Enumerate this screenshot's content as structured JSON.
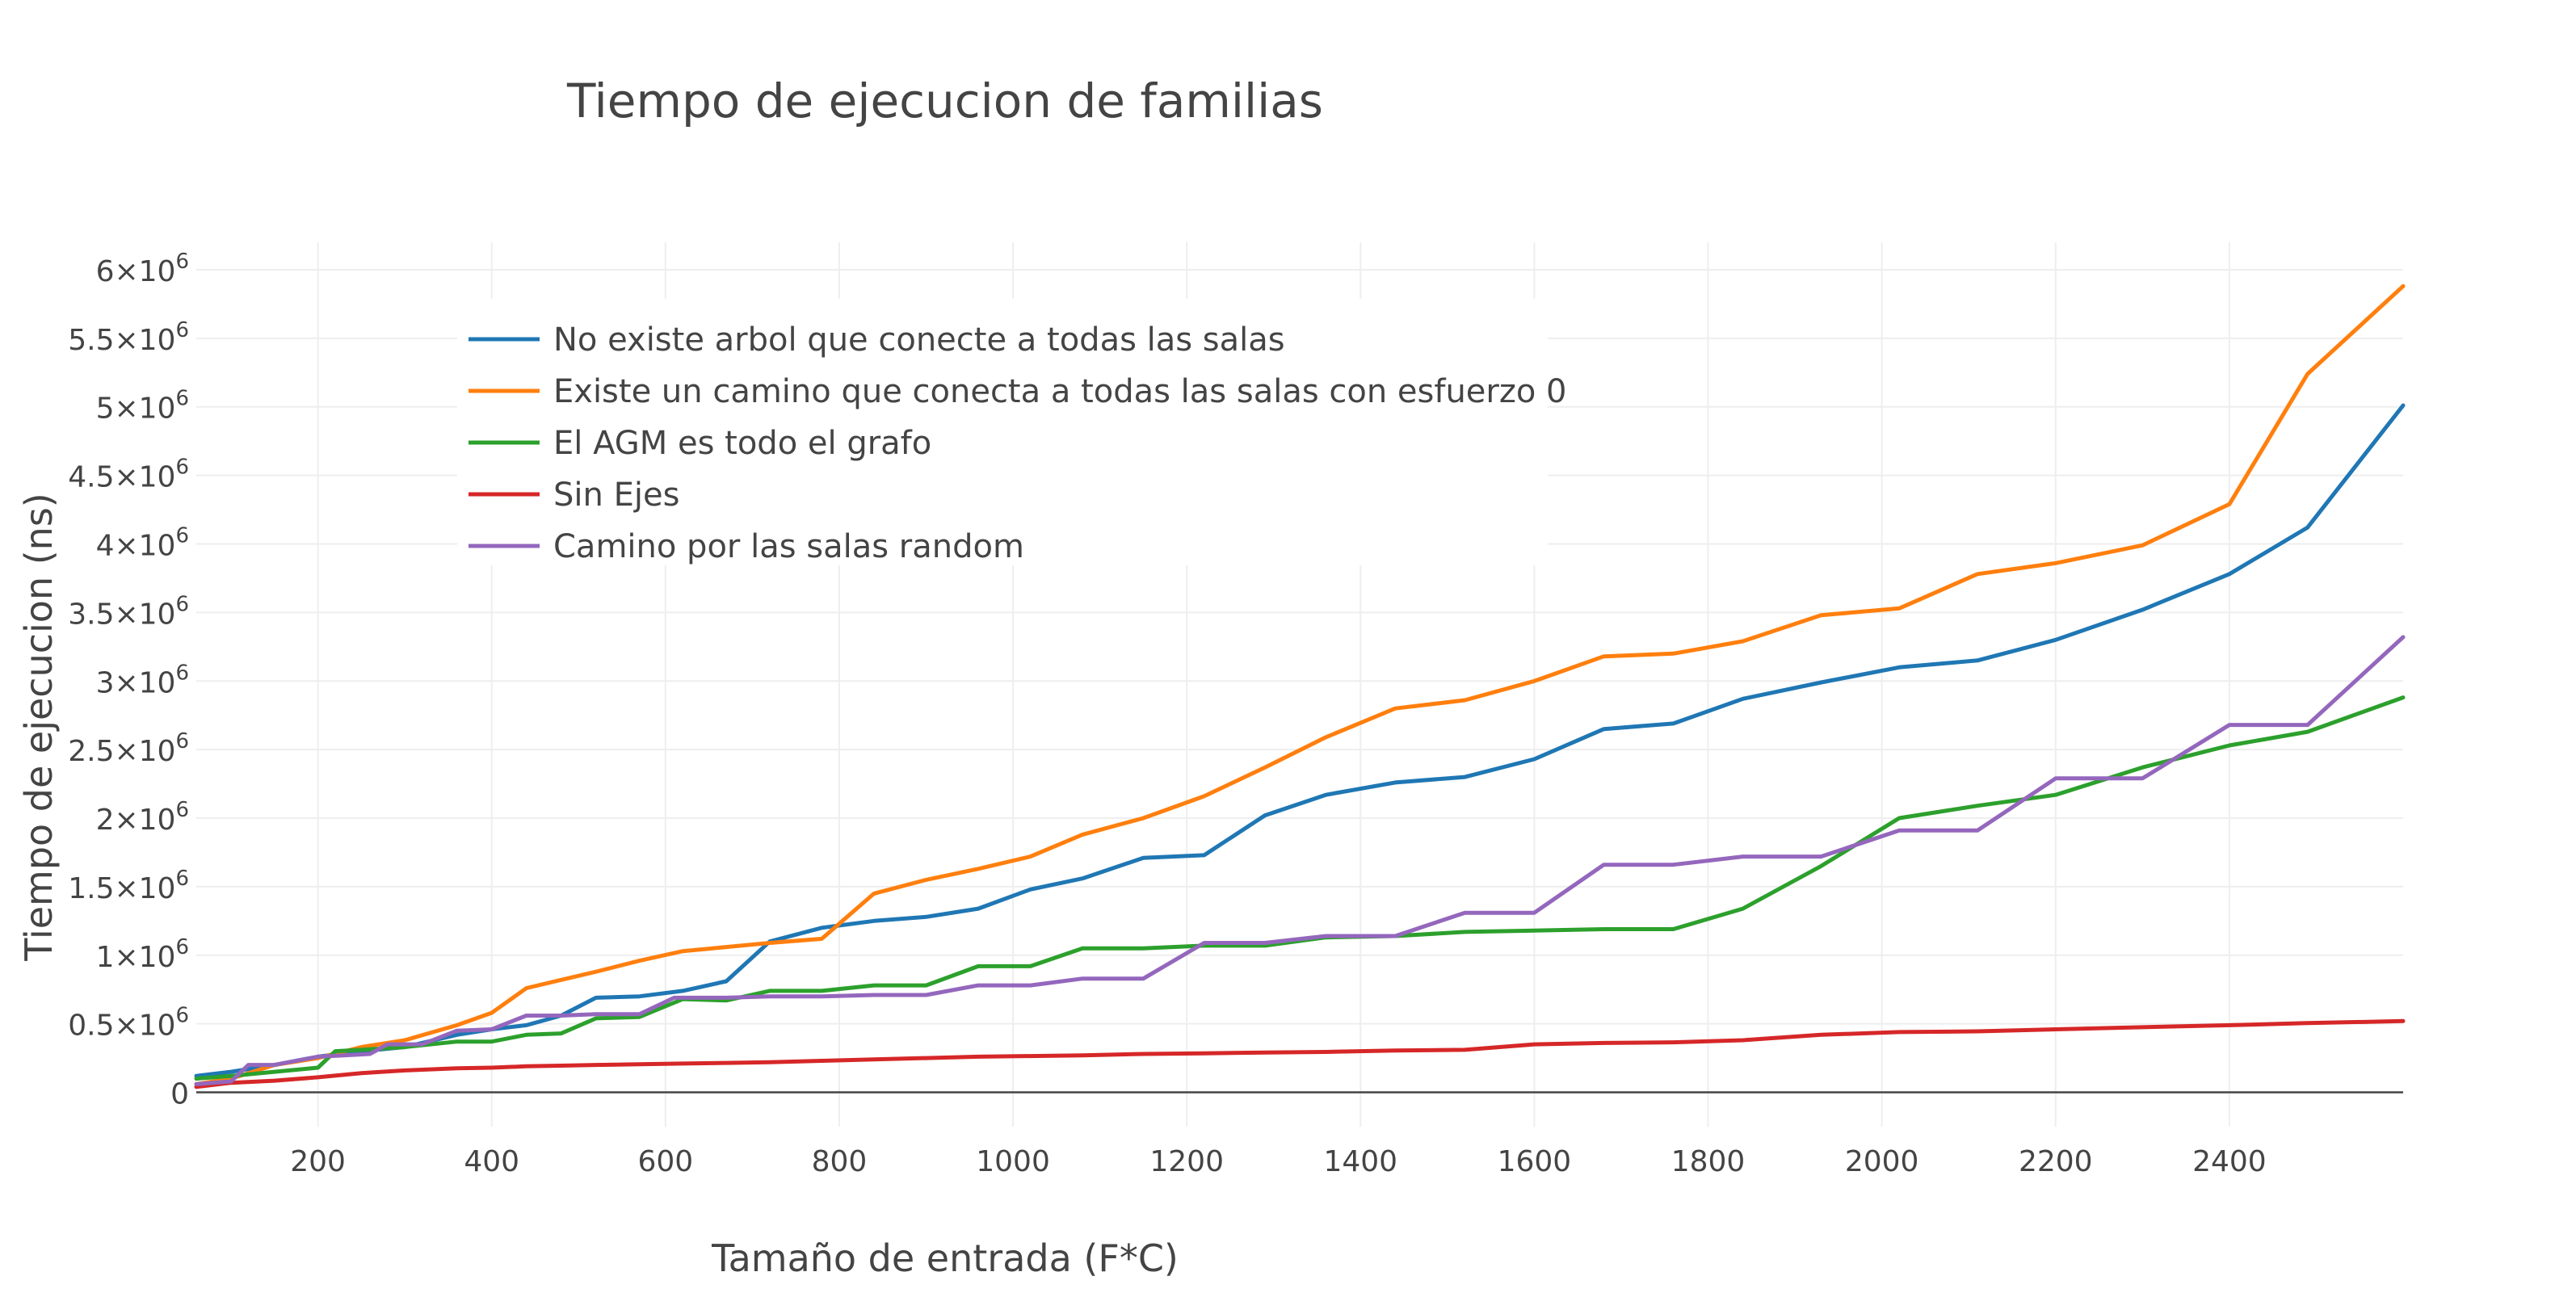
{
  "chart_data": {
    "type": "line",
    "title": "Tiempo de ejecucion de familias",
    "xlabel": "Tamaño de entrada (F*C)",
    "ylabel": "Tiempo de ejecucion (ns)",
    "xlim": [
      60,
      2600
    ],
    "ylim": [
      -250000,
      6200000
    ],
    "x_ticks": [
      {
        "value": 200,
        "label": "200"
      },
      {
        "value": 400,
        "label": "400"
      },
      {
        "value": 600,
        "label": "600"
      },
      {
        "value": 800,
        "label": "800"
      },
      {
        "value": 1000,
        "label": "1000"
      },
      {
        "value": 1200,
        "label": "1200"
      },
      {
        "value": 1400,
        "label": "1400"
      },
      {
        "value": 1600,
        "label": "1600"
      },
      {
        "value": 1800,
        "label": "1800"
      },
      {
        "value": 2000,
        "label": "2000"
      },
      {
        "value": 2200,
        "label": "2200"
      },
      {
        "value": 2400,
        "label": "2400"
      }
    ],
    "y_ticks": [
      {
        "value": 0,
        "mantissa": "0",
        "exponent": ""
      },
      {
        "value": 500000,
        "mantissa": "0.5×10",
        "exponent": "6"
      },
      {
        "value": 1000000,
        "mantissa": "1×10",
        "exponent": "6"
      },
      {
        "value": 1500000,
        "mantissa": "1.5×10",
        "exponent": "6"
      },
      {
        "value": 2000000,
        "mantissa": "2×10",
        "exponent": "6"
      },
      {
        "value": 2500000,
        "mantissa": "2.5×10",
        "exponent": "6"
      },
      {
        "value": 3000000,
        "mantissa": "3×10",
        "exponent": "6"
      },
      {
        "value": 3500000,
        "mantissa": "3.5×10",
        "exponent": "6"
      },
      {
        "value": 4000000,
        "mantissa": "4×10",
        "exponent": "6"
      },
      {
        "value": 4500000,
        "mantissa": "4.5×10",
        "exponent": "6"
      },
      {
        "value": 5000000,
        "mantissa": "5×10",
        "exponent": "6"
      },
      {
        "value": 5500000,
        "mantissa": "5.5×10",
        "exponent": "6"
      },
      {
        "value": 6000000,
        "mantissa": "6×10",
        "exponent": "6"
      }
    ],
    "grid": true,
    "legend_position": "top-left",
    "series": [
      {
        "name": "No existe arbol que conecte a todas las salas",
        "color": "#1f77b4",
        "points": [
          [
            60,
            120000
          ],
          [
            100,
            150000
          ],
          [
            150,
            200000
          ],
          [
            200,
            260000
          ],
          [
            250,
            300000
          ],
          [
            300,
            330000
          ],
          [
            360,
            420000
          ],
          [
            400,
            460000
          ],
          [
            440,
            490000
          ],
          [
            480,
            560000
          ],
          [
            520,
            690000
          ],
          [
            570,
            700000
          ],
          [
            620,
            740000
          ],
          [
            670,
            810000
          ],
          [
            720,
            1100000
          ],
          [
            780,
            1200000
          ],
          [
            840,
            1250000
          ],
          [
            900,
            1280000
          ],
          [
            960,
            1340000
          ],
          [
            1020,
            1480000
          ],
          [
            1080,
            1560000
          ],
          [
            1150,
            1710000
          ],
          [
            1220,
            1730000
          ],
          [
            1290,
            2020000
          ],
          [
            1360,
            2170000
          ],
          [
            1440,
            2260000
          ],
          [
            1520,
            2300000
          ],
          [
            1600,
            2430000
          ],
          [
            1680,
            2650000
          ],
          [
            1760,
            2690000
          ],
          [
            1840,
            2870000
          ],
          [
            1930,
            2990000
          ],
          [
            2020,
            3100000
          ],
          [
            2110,
            3150000
          ],
          [
            2200,
            3300000
          ],
          [
            2300,
            3520000
          ],
          [
            2400,
            3780000
          ],
          [
            2490,
            4120000
          ],
          [
            2600,
            5010000
          ]
        ]
      },
      {
        "name": "Existe un camino que conecta a todas las salas con esfuerzo 0",
        "color": "#ff7f0e",
        "points": [
          [
            60,
            60000
          ],
          [
            100,
            100000
          ],
          [
            150,
            200000
          ],
          [
            200,
            250000
          ],
          [
            250,
            330000
          ],
          [
            300,
            380000
          ],
          [
            360,
            490000
          ],
          [
            400,
            580000
          ],
          [
            440,
            760000
          ],
          [
            480,
            820000
          ],
          [
            520,
            880000
          ],
          [
            570,
            960000
          ],
          [
            620,
            1030000
          ],
          [
            670,
            1060000
          ],
          [
            720,
            1090000
          ],
          [
            780,
            1120000
          ],
          [
            840,
            1450000
          ],
          [
            900,
            1550000
          ],
          [
            960,
            1630000
          ],
          [
            1020,
            1720000
          ],
          [
            1080,
            1880000
          ],
          [
            1150,
            2000000
          ],
          [
            1220,
            2160000
          ],
          [
            1290,
            2370000
          ],
          [
            1360,
            2590000
          ],
          [
            1440,
            2800000
          ],
          [
            1520,
            2860000
          ],
          [
            1600,
            3000000
          ],
          [
            1680,
            3180000
          ],
          [
            1760,
            3200000
          ],
          [
            1840,
            3290000
          ],
          [
            1930,
            3480000
          ],
          [
            2020,
            3530000
          ],
          [
            2110,
            3780000
          ],
          [
            2200,
            3860000
          ],
          [
            2300,
            3990000
          ],
          [
            2400,
            4290000
          ],
          [
            2490,
            5240000
          ],
          [
            2600,
            5880000
          ]
        ]
      },
      {
        "name": "El AGM es todo el grafo",
        "color": "#2ca02c",
        "points": [
          [
            60,
            100000
          ],
          [
            100,
            120000
          ],
          [
            150,
            150000
          ],
          [
            200,
            180000
          ],
          [
            220,
            300000
          ],
          [
            250,
            310000
          ],
          [
            300,
            330000
          ],
          [
            360,
            370000
          ],
          [
            400,
            370000
          ],
          [
            440,
            420000
          ],
          [
            480,
            430000
          ],
          [
            520,
            540000
          ],
          [
            570,
            550000
          ],
          [
            620,
            680000
          ],
          [
            670,
            670000
          ],
          [
            720,
            740000
          ],
          [
            780,
            740000
          ],
          [
            840,
            780000
          ],
          [
            900,
            780000
          ],
          [
            960,
            920000
          ],
          [
            1020,
            920000
          ],
          [
            1080,
            1050000
          ],
          [
            1150,
            1050000
          ],
          [
            1220,
            1070000
          ],
          [
            1290,
            1070000
          ],
          [
            1360,
            1130000
          ],
          [
            1440,
            1140000
          ],
          [
            1520,
            1170000
          ],
          [
            1600,
            1180000
          ],
          [
            1680,
            1190000
          ],
          [
            1760,
            1190000
          ],
          [
            1840,
            1340000
          ],
          [
            1930,
            1650000
          ],
          [
            2020,
            2000000
          ],
          [
            2110,
            2090000
          ],
          [
            2200,
            2170000
          ],
          [
            2300,
            2370000
          ],
          [
            2400,
            2530000
          ],
          [
            2490,
            2630000
          ],
          [
            2600,
            2880000
          ]
        ]
      },
      {
        "name": "Sin Ejes",
        "color": "#d62728",
        "points": [
          [
            60,
            40000
          ],
          [
            100,
            70000
          ],
          [
            150,
            85000
          ],
          [
            200,
            110000
          ],
          [
            250,
            140000
          ],
          [
            300,
            160000
          ],
          [
            360,
            175000
          ],
          [
            400,
            180000
          ],
          [
            440,
            190000
          ],
          [
            480,
            195000
          ],
          [
            520,
            200000
          ],
          [
            570,
            205000
          ],
          [
            620,
            210000
          ],
          [
            670,
            215000
          ],
          [
            720,
            220000
          ],
          [
            780,
            230000
          ],
          [
            840,
            240000
          ],
          [
            900,
            250000
          ],
          [
            960,
            260000
          ],
          [
            1020,
            265000
          ],
          [
            1080,
            270000
          ],
          [
            1150,
            280000
          ],
          [
            1220,
            285000
          ],
          [
            1290,
            290000
          ],
          [
            1360,
            295000
          ],
          [
            1440,
            305000
          ],
          [
            1520,
            310000
          ],
          [
            1600,
            350000
          ],
          [
            1680,
            360000
          ],
          [
            1760,
            365000
          ],
          [
            1840,
            380000
          ],
          [
            1930,
            420000
          ],
          [
            2020,
            440000
          ],
          [
            2110,
            445000
          ],
          [
            2200,
            460000
          ],
          [
            2300,
            475000
          ],
          [
            2400,
            490000
          ],
          [
            2490,
            505000
          ],
          [
            2600,
            520000
          ]
        ]
      },
      {
        "name": "Camino por las salas random",
        "color": "#9467bd",
        "points": [
          [
            60,
            60000
          ],
          [
            100,
            80000
          ],
          [
            120,
            200000
          ],
          [
            150,
            200000
          ],
          [
            200,
            260000
          ],
          [
            230,
            270000
          ],
          [
            260,
            280000
          ],
          [
            280,
            350000
          ],
          [
            320,
            350000
          ],
          [
            360,
            450000
          ],
          [
            400,
            460000
          ],
          [
            440,
            560000
          ],
          [
            480,
            560000
          ],
          [
            520,
            570000
          ],
          [
            570,
            570000
          ],
          [
            610,
            690000
          ],
          [
            670,
            690000
          ],
          [
            720,
            700000
          ],
          [
            780,
            700000
          ],
          [
            840,
            710000
          ],
          [
            900,
            710000
          ],
          [
            960,
            780000
          ],
          [
            1020,
            780000
          ],
          [
            1080,
            830000
          ],
          [
            1150,
            830000
          ],
          [
            1220,
            1090000
          ],
          [
            1290,
            1090000
          ],
          [
            1360,
            1140000
          ],
          [
            1440,
            1140000
          ],
          [
            1520,
            1310000
          ],
          [
            1600,
            1310000
          ],
          [
            1680,
            1660000
          ],
          [
            1760,
            1660000
          ],
          [
            1840,
            1720000
          ],
          [
            1930,
            1720000
          ],
          [
            2020,
            1910000
          ],
          [
            2110,
            1910000
          ],
          [
            2200,
            2290000
          ],
          [
            2300,
            2290000
          ],
          [
            2400,
            2680000
          ],
          [
            2490,
            2680000
          ],
          [
            2600,
            3320000
          ]
        ]
      }
    ]
  }
}
